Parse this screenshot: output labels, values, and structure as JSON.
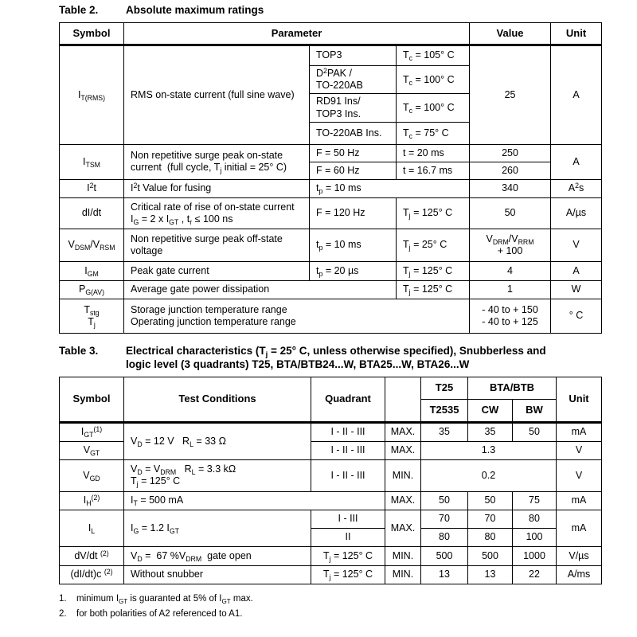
{
  "table2": {
    "label": "Table 2.",
    "title": "Absolute maximum ratings",
    "headers": {
      "symbol": "Symbol",
      "parameter": "Parameter",
      "value": "Value",
      "unit": "Unit"
    },
    "itrms": {
      "symbol": "I~T(RMS)~",
      "parameter": "RMS on-state current (full sine wave)",
      "value": "25",
      "unit": "A",
      "subrows": [
        {
          "package": "TOP3",
          "condition": "T~c~ = 105° C"
        },
        {
          "package": "D^2^PAK /\nTO-220AB",
          "condition": "T~c~ = 100° C"
        },
        {
          "package": "RD91 Ins/\nTOP3 Ins.",
          "condition": "T~c~ = 100° C"
        },
        {
          "package": "TO-220AB Ins.",
          "condition": "T~c~ = 75° C"
        }
      ]
    },
    "itsm": {
      "symbol": "I~TSM~",
      "parameter": "Non repetitive surge peak on-state\ncurrent  (full cycle, T~j~ initial = 25° C)",
      "unit": "A",
      "subrows": [
        {
          "freq": "F = 50 Hz",
          "time": "t = 20 ms",
          "value": "250"
        },
        {
          "freq": "F = 60 Hz",
          "time": "t = 16.7 ms",
          "value": "260"
        }
      ]
    },
    "i2t": {
      "symbol": "I^2^t",
      "parameter": "I^2^t Value for fusing",
      "condition": "t~p~ = 10 ms",
      "value": "340",
      "unit": "A^2^s"
    },
    "didt": {
      "symbol": "dI/dt",
      "parameter": "Critical rate of rise of on-state current\nI~G~ = 2 x I~GT~ , t~r~ ≤ 100 ns",
      "cond1": "F = 120 Hz",
      "cond2": "T~j~ = 125° C",
      "value": "50",
      "unit": "A/µs"
    },
    "vdsm": {
      "symbol": "V~DSM~/V~RSM~",
      "parameter": "Non repetitive surge peak off-state\nvoltage",
      "cond1": "t~p~ = 10 ms",
      "cond2": "T~j~ = 25° C",
      "value": "V~DRM~/V~RRM~\n+ 100",
      "unit": "V"
    },
    "igm": {
      "symbol": "I~GM~",
      "parameter": "Peak gate current",
      "cond1": "t~p~ = 20 µs",
      "cond2": "T~j~ = 125° C",
      "value": "4",
      "unit": "A"
    },
    "pgav": {
      "symbol": "P~G(AV)~",
      "parameter": "Average gate power dissipation",
      "cond2": "T~j~ = 125° C",
      "value": "1",
      "unit": "W"
    },
    "tstg": {
      "symbol": "T~stg~\nT~j~",
      "parameter": "Storage junction temperature range\nOperating junction temperature range",
      "value": "- 40 to + 150\n- 40 to + 125",
      "unit": "° C"
    }
  },
  "table3": {
    "label": "Table 3.",
    "title": "Electrical characteristics (T~j~ = 25° C, unless otherwise specified), Snubberless and\nlogic level (3 quadrants) T25, BTA/BTB24...W, BTA25...W, BTA26...W",
    "headers": {
      "symbol": "Symbol",
      "test_conditions": "Test Conditions",
      "quadrant": "Quadrant",
      "t25": "T25",
      "btabtb": "BTA/BTB",
      "t2535": "T2535",
      "cw": "CW",
      "bw": "BW",
      "unit": "Unit"
    },
    "igt": {
      "symbol": "I~GT~^(1)^",
      "tc": "V~D~ = 12 V   R~L~ = 33 Ω",
      "quadrant": "I - II - III",
      "stat": "MAX.",
      "t2535": "35",
      "cw": "35",
      "bw": "50",
      "unit": "mA"
    },
    "vgt": {
      "symbol": "V~GT~",
      "quadrant": "I - II - III",
      "stat": "MAX.",
      "value": "1.3",
      "unit": "V"
    },
    "vgd": {
      "symbol": "V~GD~",
      "tc": "V~D~ = V~DRM~   R~L~ = 3.3 kΩ\nT~j~ = 125° C",
      "quadrant": "I - II - III",
      "stat": "MIN.",
      "value": "0.2",
      "unit": "V"
    },
    "ih": {
      "symbol": "I~H~^(2)^",
      "tc": "I~T~ = 500 mA",
      "stat": "MAX.",
      "t2535": "50",
      "cw": "50",
      "bw": "75",
      "unit": "mA"
    },
    "il": {
      "symbol": "I~L~",
      "tc": "I~G~ = 1.2 I~GT~",
      "stat": "MAX.",
      "unit": "mA",
      "subrows": [
        {
          "quadrant": "I - III",
          "t2535": "70",
          "cw": "70",
          "bw": "80"
        },
        {
          "quadrant": "II",
          "t2535": "80",
          "cw": "80",
          "bw": "100"
        }
      ]
    },
    "dvdt": {
      "symbol": "dV/dt ^(2)^",
      "tc": "V~D~ =  67 %V~DRM~  gate open",
      "quadrant": "T~j~ = 125° C",
      "stat": "MIN.",
      "t2535": "500",
      "cw": "500",
      "bw": "1000",
      "unit": "V/µs"
    },
    "didtc": {
      "symbol": "(dI/dt)c ^(2)^",
      "tc": "Without snubber",
      "quadrant": "T~j~ = 125° C",
      "stat": "MIN.",
      "t2535": "13",
      "cw": "13",
      "bw": "22",
      "unit": "A/ms"
    }
  },
  "footnotes": [
    {
      "num": "1.",
      "text": "minimum I~GT~ is guaranted at 5% of I~GT~ max."
    },
    {
      "num": "2.",
      "text": "for both polarities of A2 referenced to A1."
    }
  ]
}
